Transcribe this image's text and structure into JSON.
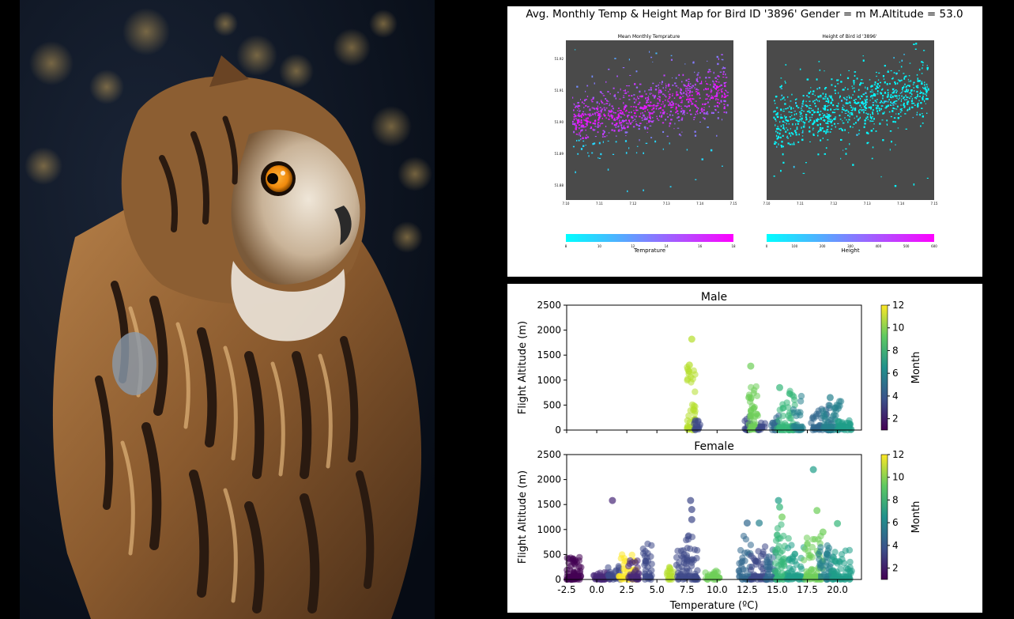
{
  "photo": {
    "subject": "owl",
    "colors": {
      "background": "#0b1424",
      "feather_light": "#c8955a",
      "feather_dark": "#2a1a10",
      "eye": "#f08a0c"
    }
  },
  "top_figure": {
    "title": "Avg. Monthly Temp & Height Map for Bird ID '3896' Gender = m  M.Altitude = 53.0",
    "left_map": {
      "title": "Mean Monthly Temprature",
      "colorbar_label": "Temprature",
      "colorbar_ticks": [
        "8",
        "10",
        "12",
        "14",
        "16",
        "18"
      ],
      "x_ticks": [
        "7.10",
        "7.11",
        "7.12",
        "7.13",
        "7.14",
        "7.15"
      ],
      "y_ticks": [
        "51.92",
        "51.91",
        "51.90",
        "51.89",
        "51.88"
      ]
    },
    "right_map": {
      "title": "Height of Bird id '3896'",
      "colorbar_label": "Height",
      "colorbar_ticks": [
        "0",
        "100",
        "200",
        "300",
        "400",
        "500",
        "600"
      ],
      "x_ticks": [
        "7.10",
        "7.11",
        "7.12",
        "7.13",
        "7.14",
        "7.15"
      ]
    },
    "colors": {
      "map_bg": "#4a4a4a",
      "cool": "#00ffff",
      "warm": "#ff00ff"
    }
  },
  "chart_data": [
    {
      "type": "scatter",
      "title": "Male",
      "xlabel": "",
      "ylabel": "Flight Altitude (m)",
      "xlim": [
        -2.5,
        22
      ],
      "ylim": [
        0,
        2500
      ],
      "y_ticks": [
        "0",
        "500",
        "1000",
        "1500",
        "2000",
        "2500"
      ],
      "colorbar": {
        "label": "Month",
        "ticks": [
          "2",
          "4",
          "6",
          "8",
          "10",
          "12"
        ],
        "range": [
          1,
          12
        ]
      },
      "clusters": [
        {
          "x_min": 7.5,
          "x_max": 8.2,
          "month": 11,
          "peak": 1300,
          "n": 40
        },
        {
          "x_min": 8.0,
          "x_max": 8.6,
          "month": 4,
          "peak": 200,
          "n": 12
        },
        {
          "x_min": 12.3,
          "x_max": 12.8,
          "month": 4,
          "peak": 300,
          "n": 15
        },
        {
          "x_min": 12.6,
          "x_max": 13.4,
          "month": 10,
          "peak": 950,
          "n": 45
        },
        {
          "x_min": 13.4,
          "x_max": 14.0,
          "month": 4,
          "peak": 150,
          "n": 10
        },
        {
          "x_min": 14.5,
          "x_max": 15.2,
          "month": 5,
          "peak": 300,
          "n": 15
        },
        {
          "x_min": 15.0,
          "x_max": 16.6,
          "month": 8,
          "peak": 800,
          "n": 55
        },
        {
          "x_min": 16.3,
          "x_max": 17.2,
          "month": 6,
          "peak": 700,
          "n": 20
        },
        {
          "x_min": 17.8,
          "x_max": 19.5,
          "month": 5,
          "peak": 500,
          "n": 40
        },
        {
          "x_min": 18.8,
          "x_max": 20.6,
          "month": 6,
          "peak": 600,
          "n": 45
        },
        {
          "x_min": 20.0,
          "x_max": 21.2,
          "month": 7,
          "peak": 200,
          "n": 25
        }
      ],
      "outliers": [
        {
          "x": 7.9,
          "y": 1820,
          "month": 11
        },
        {
          "x": 7.7,
          "y": 1300,
          "month": 11
        },
        {
          "x": 12.8,
          "y": 1280,
          "month": 10
        },
        {
          "x": 15.2,
          "y": 850,
          "month": 8
        },
        {
          "x": 19.4,
          "y": 650,
          "month": 6
        }
      ]
    },
    {
      "type": "scatter",
      "title": "Female",
      "xlabel": "Temperature (ºC)",
      "ylabel": "Flight Altitude (m)",
      "xlim": [
        -2.5,
        22
      ],
      "ylim": [
        0,
        2500
      ],
      "x_ticks": [
        "-2.5",
        "0.0",
        "2.5",
        "5.0",
        "7.5",
        "10.0",
        "12.5",
        "15.0",
        "17.5",
        "20.0"
      ],
      "y_ticks": [
        "0",
        "500",
        "1000",
        "1500",
        "2000",
        "2500"
      ],
      "colorbar": {
        "label": "Month",
        "ticks": [
          "2",
          "4",
          "6",
          "8",
          "10",
          "12"
        ],
        "range": [
          1,
          12
        ]
      },
      "clusters": [
        {
          "x_min": -2.5,
          "x_max": -1.3,
          "month": 1,
          "peak": 450,
          "n": 60
        },
        {
          "x_min": -0.3,
          "x_max": 1.2,
          "month": 2,
          "peak": 150,
          "n": 40
        },
        {
          "x_min": 0.8,
          "x_max": 2.0,
          "month": 3,
          "peak": 300,
          "n": 20
        },
        {
          "x_min": 1.8,
          "x_max": 3.3,
          "month": 12,
          "peak": 500,
          "n": 40
        },
        {
          "x_min": 2.6,
          "x_max": 3.6,
          "month": 2,
          "peak": 400,
          "n": 25
        },
        {
          "x_min": 3.8,
          "x_max": 4.6,
          "month": 3,
          "peak": 850,
          "n": 30
        },
        {
          "x_min": 5.8,
          "x_max": 6.4,
          "month": 11,
          "peak": 250,
          "n": 15
        },
        {
          "x_min": 6.6,
          "x_max": 7.6,
          "month": 4,
          "peak": 700,
          "n": 30
        },
        {
          "x_min": 7.4,
          "x_max": 8.4,
          "month": 4,
          "peak": 900,
          "n": 35
        },
        {
          "x_min": 9.0,
          "x_max": 10.2,
          "month": 10,
          "peak": 180,
          "n": 20
        },
        {
          "x_min": 11.8,
          "x_max": 12.8,
          "month": 5,
          "peak": 900,
          "n": 35
        },
        {
          "x_min": 12.8,
          "x_max": 14.2,
          "month": 4,
          "peak": 700,
          "n": 40
        },
        {
          "x_min": 14.0,
          "x_max": 15.0,
          "month": 5,
          "peak": 600,
          "n": 30
        },
        {
          "x_min": 14.8,
          "x_max": 16.0,
          "month": 8,
          "peak": 1100,
          "n": 50
        },
        {
          "x_min": 15.8,
          "x_max": 17.2,
          "month": 7,
          "peak": 700,
          "n": 40
        },
        {
          "x_min": 17.2,
          "x_max": 18.8,
          "month": 9,
          "peak": 900,
          "n": 50
        },
        {
          "x_min": 18.4,
          "x_max": 19.8,
          "month": 6,
          "peak": 700,
          "n": 40
        },
        {
          "x_min": 19.5,
          "x_max": 21.2,
          "month": 7,
          "peak": 600,
          "n": 45
        }
      ],
      "outliers": [
        {
          "x": 1.3,
          "y": 1580,
          "month": 2
        },
        {
          "x": 7.8,
          "y": 1580,
          "month": 4
        },
        {
          "x": 7.9,
          "y": 1400,
          "month": 4
        },
        {
          "x": 7.9,
          "y": 1200,
          "month": 4
        },
        {
          "x": 12.5,
          "y": 1130,
          "month": 5
        },
        {
          "x": 13.5,
          "y": 1130,
          "month": 6
        },
        {
          "x": 15.1,
          "y": 1580,
          "month": 7
        },
        {
          "x": 15.2,
          "y": 1450,
          "month": 8
        },
        {
          "x": 15.4,
          "y": 1250,
          "month": 9
        },
        {
          "x": 18.0,
          "y": 2200,
          "month": 7
        },
        {
          "x": 18.3,
          "y": 1380,
          "month": 9
        },
        {
          "x": 20.0,
          "y": 1120,
          "month": 8
        },
        {
          "x": 18.8,
          "y": 950,
          "month": 10
        }
      ]
    }
  ]
}
